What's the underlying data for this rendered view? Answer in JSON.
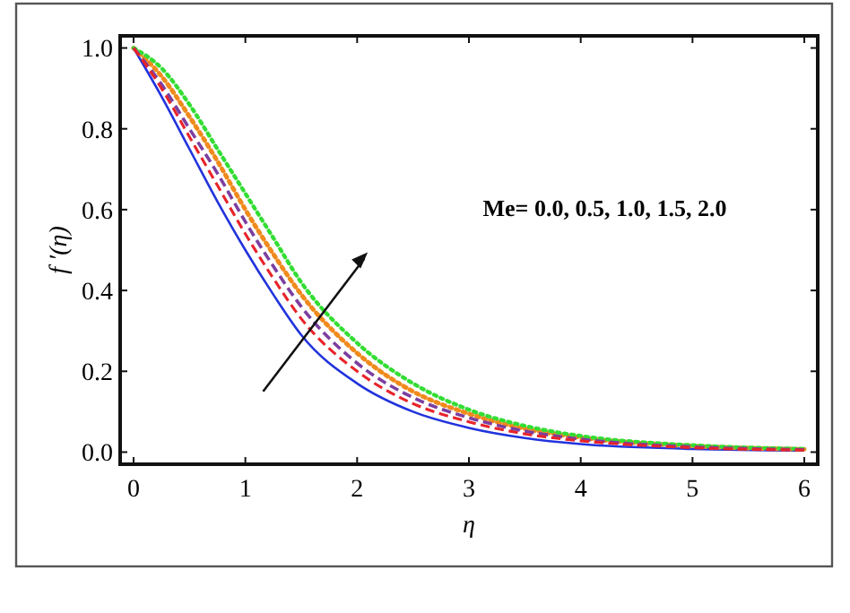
{
  "chart_data": {
    "type": "line",
    "xlabel": "η",
    "ylabel": "f ′(η)",
    "xlim": [
      -0.12,
      6.12
    ],
    "ylim": [
      -0.03,
      1.03
    ],
    "xticks": [
      0,
      1,
      2,
      3,
      4,
      5,
      6
    ],
    "yticks": [
      {
        "value": 0,
        "label": "0.0"
      },
      {
        "value": 0.2,
        "label": "0.2"
      },
      {
        "value": 0.4,
        "label": "0.4"
      },
      {
        "value": 0.6,
        "label": "0.6"
      },
      {
        "value": 0.8,
        "label": "0.8"
      },
      {
        "value": 1,
        "label": "1.0"
      }
    ],
    "grid": false,
    "marker": "none",
    "x": [
      0,
      0.25,
      0.5,
      0.75,
      1,
      1.25,
      1.5,
      2,
      2.5,
      3,
      3.5,
      4,
      5,
      6
    ],
    "series": [
      {
        "color": "#2233dd",
        "line_style": "solid",
        "values": [
          1,
          0.88,
          0.75,
          0.62,
          0.5,
          0.39,
          0.29,
          0.17,
          0.1,
          0.06,
          0.035,
          0.02,
          0.008,
          0.004
        ]
      },
      {
        "color": "#e8232a",
        "line_style": "dashed",
        "values": [
          1,
          0.9,
          0.78,
          0.66,
          0.54,
          0.43,
          0.33,
          0.2,
          0.12,
          0.075,
          0.045,
          0.028,
          0.011,
          0.005
        ]
      },
      {
        "color": "#7b3fa0",
        "line_style": "dashed",
        "values": [
          1,
          0.91,
          0.8,
          0.69,
          0.57,
          0.46,
          0.36,
          0.22,
          0.135,
          0.085,
          0.052,
          0.032,
          0.013,
          0.006
        ]
      },
      {
        "color": "#f08a1c",
        "line_style": "dotted",
        "values": [
          1,
          0.93,
          0.83,
          0.72,
          0.6,
          0.49,
          0.39,
          0.245,
          0.15,
          0.095,
          0.058,
          0.036,
          0.015,
          0.007
        ]
      },
      {
        "color": "#33dd33",
        "line_style": "dotted",
        "values": [
          1,
          0.95,
          0.86,
          0.75,
          0.64,
          0.53,
          0.42,
          0.27,
          0.17,
          0.105,
          0.065,
          0.04,
          0.017,
          0.008
        ]
      }
    ],
    "annotations": [
      "Me= 0.0, 0.5, 1.0, 1.5, 2.0"
    ]
  }
}
